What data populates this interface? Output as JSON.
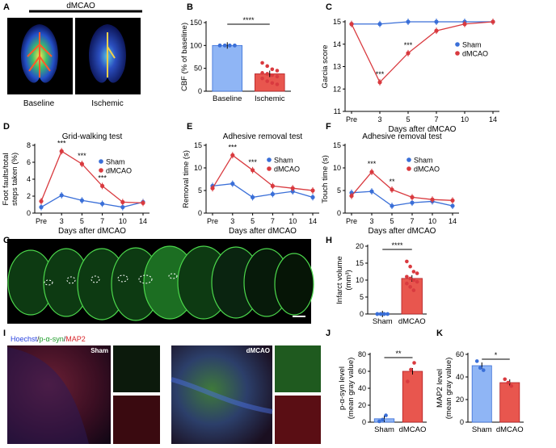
{
  "panel_labels": {
    "A": "A",
    "B": "B",
    "C": "C",
    "D": "D",
    "E": "E",
    "F": "F",
    "G": "G",
    "H": "H",
    "I": "I",
    "J": "J",
    "K": "K"
  },
  "panelA": {
    "header": "dMCAO",
    "left_caption": "Baseline",
    "right_caption": "Ischemic"
  },
  "panelI": {
    "legend_hoechst": "Hoechst",
    "legend_sep1": "/",
    "legend_psyn": "p-α-syn",
    "legend_sep2": "/",
    "legend_map2": "MAP2",
    "sham_tag": "Sham",
    "dmcao_tag": "dMCAO"
  },
  "colors": {
    "sham": "#3a6fd8",
    "dmcao": "#d93a3f",
    "bar_blue": "#8fb5f5",
    "bar_red": "#e8564e"
  },
  "chart_data": [
    {
      "id": "B",
      "type": "bar",
      "title": "",
      "ylabel": "CBF (% of baseline)",
      "categories": [
        "Baseline",
        "Ischemic"
      ],
      "values": [
        100,
        38
      ],
      "ylim": [
        0,
        150
      ],
      "yticks": [
        0,
        50,
        100,
        150
      ],
      "significance": "****",
      "points": [
        [
          100,
          100,
          100,
          100,
          100,
          100,
          100,
          100,
          100,
          100,
          100,
          100
        ],
        [
          62,
          55,
          48,
          45,
          40,
          38,
          35,
          32,
          28,
          22,
          18,
          15
        ]
      ]
    },
    {
      "id": "C",
      "type": "line",
      "title": "",
      "xlabel": "Days after dMCAO",
      "ylabel": "Garcia score",
      "x": [
        "Pre",
        "3",
        "5",
        "7",
        "10",
        "14"
      ],
      "ylim": [
        11,
        15
      ],
      "yticks": [
        11,
        12,
        13,
        14,
        15
      ],
      "series": [
        {
          "name": "Sham",
          "values": [
            14.9,
            14.9,
            15,
            15,
            15,
            15
          ]
        },
        {
          "name": "dMCAO",
          "values": [
            14.9,
            12.3,
            13.6,
            14.6,
            14.9,
            15
          ]
        }
      ],
      "annotations": [
        {
          "x": "3",
          "text": "***"
        },
        {
          "x": "5",
          "text": "***"
        }
      ]
    },
    {
      "id": "D",
      "type": "line",
      "title": "Grid-walking test",
      "xlabel": "Days after dMCAO",
      "ylabel": "Foot faults/total steps taken (%)",
      "x": [
        "Pre",
        "3",
        "5",
        "7",
        "10",
        "14"
      ],
      "ylim": [
        0,
        8
      ],
      "yticks": [
        0,
        2,
        4,
        6,
        8
      ],
      "series": [
        {
          "name": "Sham",
          "values": [
            0.7,
            2.1,
            1.5,
            1.1,
            0.7,
            1.3
          ]
        },
        {
          "name": "dMCAO",
          "values": [
            1.4,
            7.3,
            5.8,
            3.2,
            1.3,
            1.2
          ]
        }
      ],
      "annotations": [
        {
          "x": "3",
          "text": "***"
        },
        {
          "x": "5",
          "text": "***"
        },
        {
          "x": "7",
          "text": "***"
        }
      ]
    },
    {
      "id": "E",
      "type": "line",
      "title": "Adhesive removal test",
      "xlabel": "Days after dMCAO",
      "ylabel": "Removal time (s)",
      "x": [
        "Pre",
        "3",
        "5",
        "7",
        "10",
        "14"
      ],
      "ylim": [
        0,
        15
      ],
      "yticks": [
        0,
        5,
        10,
        15
      ],
      "series": [
        {
          "name": "Sham",
          "values": [
            6,
            6.5,
            3.5,
            4.2,
            4.8,
            3.5
          ]
        },
        {
          "name": "dMCAO",
          "values": [
            5.5,
            12.8,
            9.5,
            6,
            5.5,
            5
          ]
        }
      ],
      "annotations": [
        {
          "x": "3",
          "text": "***"
        },
        {
          "x": "5",
          "text": "***"
        }
      ]
    },
    {
      "id": "F",
      "type": "line",
      "title": "Adhesive removal test",
      "xlabel": "Days after dMCAO",
      "ylabel": "Touch time (s)",
      "x": [
        "Pre",
        "3",
        "5",
        "7",
        "10",
        "14"
      ],
      "ylim": [
        0,
        15
      ],
      "yticks": [
        0,
        5,
        10,
        15
      ],
      "series": [
        {
          "name": "Sham",
          "values": [
            4.5,
            4.8,
            1.6,
            2.3,
            2.6,
            1.6
          ]
        },
        {
          "name": "dMCAO",
          "values": [
            3.8,
            9.1,
            5.2,
            3.5,
            3,
            2.8
          ]
        }
      ],
      "annotations": [
        {
          "x": "3",
          "text": "***"
        },
        {
          "x": "5",
          "text": "**"
        }
      ]
    },
    {
      "id": "H",
      "type": "bar",
      "ylabel": "Infarct volume (mm³)",
      "categories": [
        "Sham",
        "dMCAO"
      ],
      "values": [
        0,
        10.5
      ],
      "ylim": [
        0,
        20
      ],
      "yticks": [
        0,
        5,
        10,
        15,
        20
      ],
      "significance": "****",
      "points": [
        [
          0,
          0,
          0,
          0,
          0,
          0,
          0,
          0,
          0,
          0,
          0
        ],
        [
          15.5,
          14,
          12.5,
          12,
          11,
          10.5,
          10,
          9.5,
          9,
          8,
          7
        ]
      ]
    },
    {
      "id": "J",
      "type": "bar",
      "ylabel": "p-α-syn level (mean gray value)",
      "categories": [
        "Sham",
        "dMCAO"
      ],
      "values": [
        4,
        60
      ],
      "ylim": [
        0,
        80
      ],
      "yticks": [
        0,
        20,
        40,
        60,
        80
      ],
      "significance": "**",
      "points": [
        [
          1,
          3,
          8
        ],
        [
          48,
          62,
          70
        ]
      ]
    },
    {
      "id": "K",
      "type": "bar",
      "ylabel": "MAP2 level (mean gray value)",
      "categories": [
        "Sham",
        "dMCAO"
      ],
      "values": [
        50,
        35
      ],
      "ylim": [
        0,
        60
      ],
      "yticks": [
        0,
        20,
        40,
        60
      ],
      "significance": "*",
      "points": [
        [
          54,
          48,
          46
        ],
        [
          38,
          35,
          32
        ]
      ]
    }
  ]
}
